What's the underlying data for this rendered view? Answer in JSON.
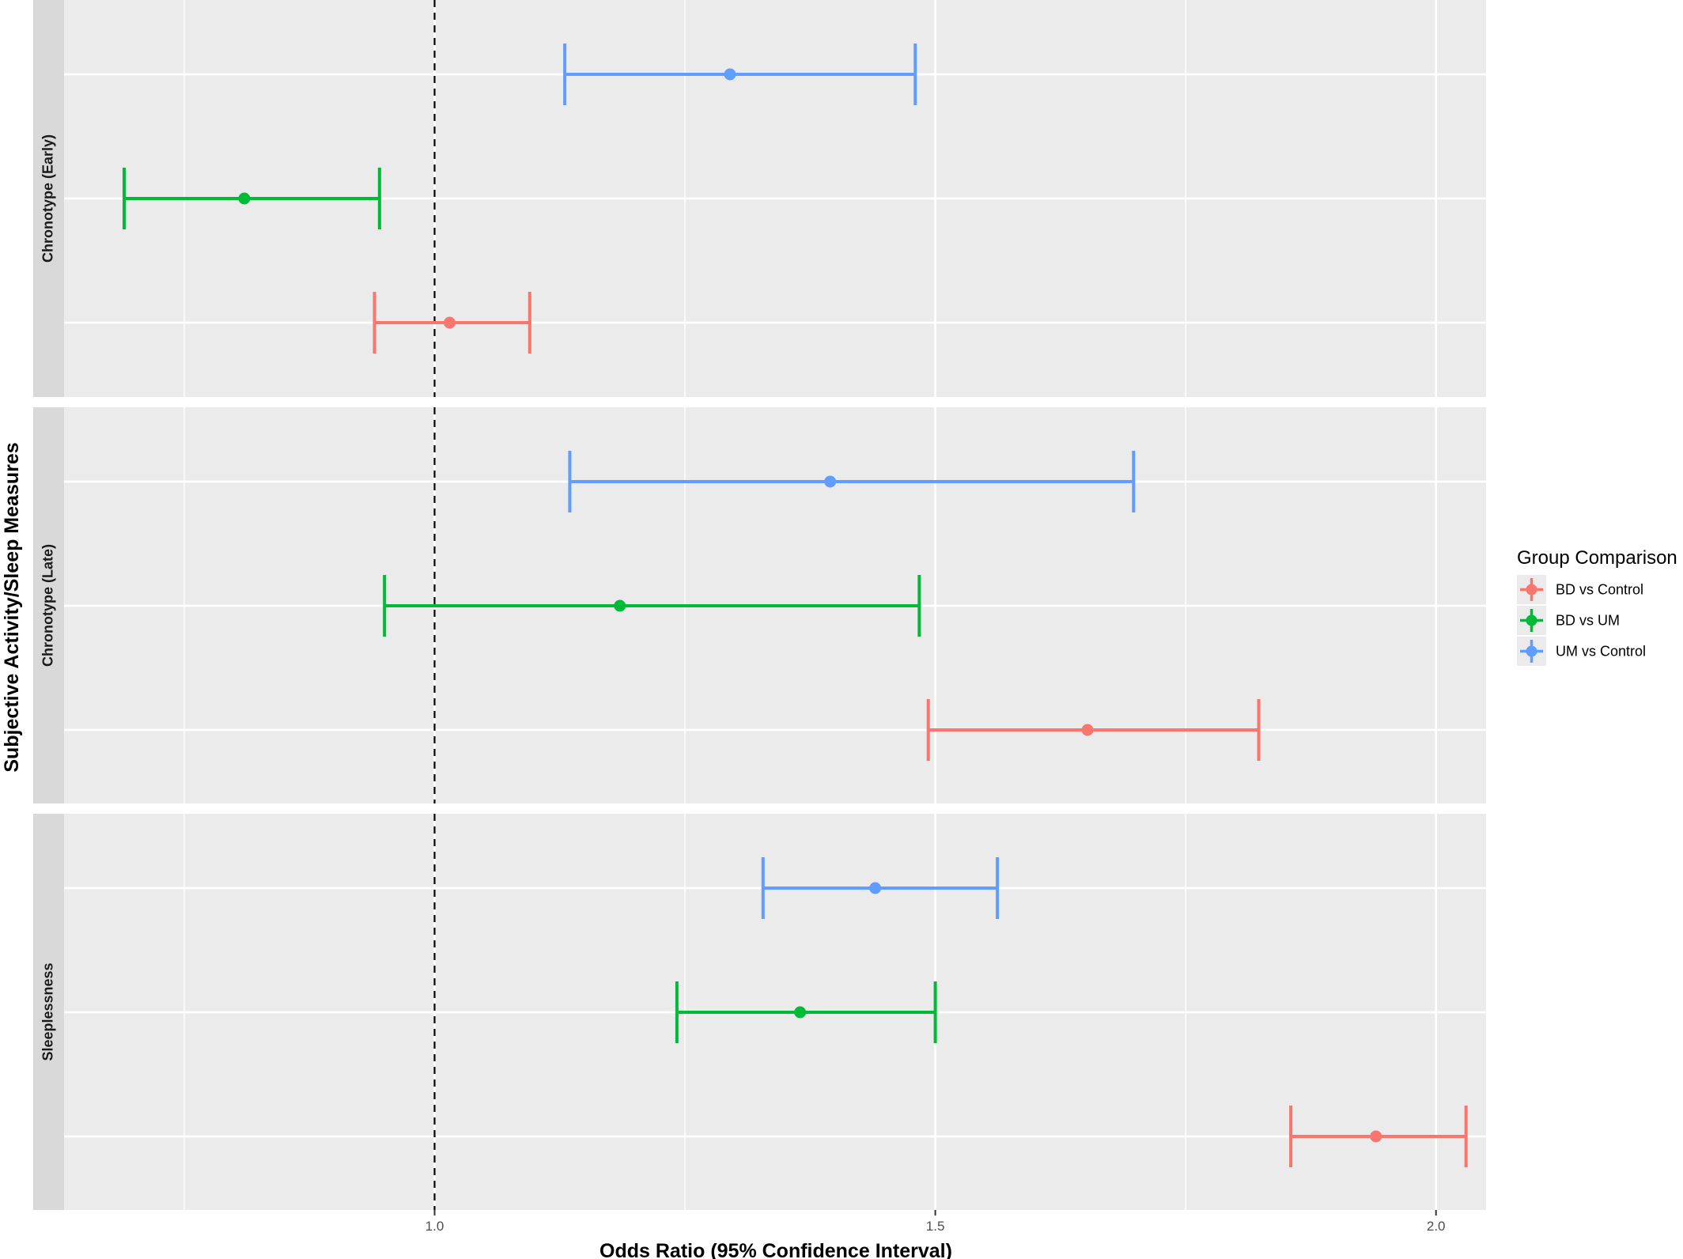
{
  "chart_data": {
    "type": "forest",
    "xlabel": "Odds Ratio (95% Confidence Interval)",
    "ylabel": "Subjective Activity/Sleep Measures",
    "xlim": [
      0.63,
      2.05
    ],
    "x_ticks": [
      1.0,
      1.5,
      2.0
    ],
    "x_tick_labels": [
      "1.0",
      "1.5",
      "2.0"
    ],
    "x_minor_ticks": [
      0.75,
      1.25,
      1.75
    ],
    "reference_line": 1.0,
    "grid": true,
    "legend": {
      "title": "Group Comparison",
      "position": "right",
      "entries": [
        {
          "name": "BD vs Control",
          "color": "#F8766D"
        },
        {
          "name": "BD vs UM",
          "color": "#00BA38"
        },
        {
          "name": "UM vs Control",
          "color": "#619CFF"
        }
      ]
    },
    "facets": [
      {
        "label": "Chronotype (Early)",
        "rows": [
          {
            "group": "UM vs Control",
            "or": 1.295,
            "lower": 1.13,
            "upper": 1.48
          },
          {
            "group": "BD vs UM",
            "or": 0.81,
            "lower": 0.69,
            "upper": 0.945
          },
          {
            "group": "BD vs Control",
            "or": 1.015,
            "lower": 0.94,
            "upper": 1.095
          }
        ]
      },
      {
        "label": "Chronotype (Late)",
        "rows": [
          {
            "group": "UM vs Control",
            "or": 1.395,
            "lower": 1.135,
            "upper": 1.698
          },
          {
            "group": "BD vs UM",
            "or": 1.185,
            "lower": 0.95,
            "upper": 1.484
          },
          {
            "group": "BD vs Control",
            "or": 1.652,
            "lower": 1.493,
            "upper": 1.823
          }
        ]
      },
      {
        "label": "Sleeplessness",
        "rows": [
          {
            "group": "UM vs Control",
            "or": 1.44,
            "lower": 1.328,
            "upper": 1.562
          },
          {
            "group": "BD vs UM",
            "or": 1.365,
            "lower": 1.242,
            "upper": 1.5
          },
          {
            "group": "BD vs Control",
            "or": 1.94,
            "lower": 1.855,
            "upper": 2.03
          }
        ]
      }
    ]
  }
}
